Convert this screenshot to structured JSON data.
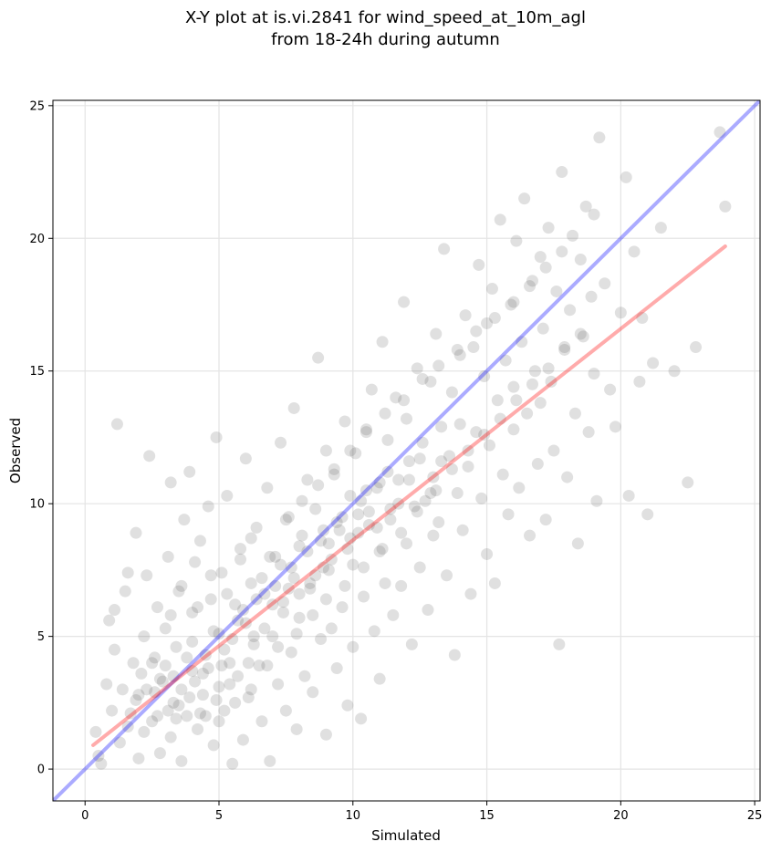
{
  "chart_data": {
    "type": "scatter",
    "title": "X-Y plot at is.vi.2841 for wind_speed_at_10m_agl",
    "subtitle": "from 18-24h during autumn",
    "xlabel": "Simulated",
    "ylabel": "Observed",
    "xlim": [
      -1.2,
      25.2
    ],
    "ylim": [
      -1.2,
      25.2
    ],
    "xticks": [
      0,
      5,
      10,
      15,
      20,
      25
    ],
    "yticks": [
      0,
      5,
      10,
      15,
      20,
      25
    ],
    "grid": true,
    "point_color": "#555555",
    "point_opacity": 0.18,
    "lines": [
      {
        "color": "#0000ff",
        "x": [
          -1.2,
          25.2
        ],
        "y": [
          -1.2,
          25.2
        ]
      },
      {
        "color": "#ff0000",
        "x": [
          0.3,
          23.9
        ],
        "y": [
          0.9,
          19.7
        ]
      }
    ],
    "points": [
      [
        0.4,
        1.4
      ],
      [
        0.5,
        0.5
      ],
      [
        0.6,
        0.2
      ],
      [
        0.8,
        3.2
      ],
      [
        0.9,
        5.6
      ],
      [
        1.0,
        2.2
      ],
      [
        1.1,
        4.5
      ],
      [
        1.1,
        6.0
      ],
      [
        1.2,
        13.0
      ],
      [
        1.3,
        1.0
      ],
      [
        1.4,
        3.0
      ],
      [
        1.5,
        6.7
      ],
      [
        1.6,
        7.4
      ],
      [
        1.7,
        2.1
      ],
      [
        1.8,
        4.0
      ],
      [
        1.9,
        8.9
      ],
      [
        2.0,
        0.4
      ],
      [
        2.1,
        3.6
      ],
      [
        2.2,
        5.0
      ],
      [
        2.3,
        7.3
      ],
      [
        2.4,
        11.8
      ],
      [
        2.5,
        1.8
      ],
      [
        2.6,
        2.9
      ],
      [
        2.6,
        4.2
      ],
      [
        2.7,
        6.1
      ],
      [
        2.8,
        0.6
      ],
      [
        2.9,
        3.3
      ],
      [
        3.0,
        5.3
      ],
      [
        3.1,
        8.0
      ],
      [
        3.2,
        1.2
      ],
      [
        3.2,
        10.8
      ],
      [
        3.3,
        2.5
      ],
      [
        3.4,
        4.6
      ],
      [
        3.5,
        6.7
      ],
      [
        3.6,
        0.3
      ],
      [
        3.7,
        9.4
      ],
      [
        3.8,
        2.0
      ],
      [
        3.9,
        11.2
      ],
      [
        4.0,
        3.7
      ],
      [
        4.0,
        5.9
      ],
      [
        4.1,
        7.8
      ],
      [
        4.2,
        1.5
      ],
      [
        4.3,
        8.6
      ],
      [
        4.4,
        2.8
      ],
      [
        4.5,
        4.3
      ],
      [
        4.6,
        9.9
      ],
      [
        4.7,
        6.4
      ],
      [
        4.8,
        0.9
      ],
      [
        4.9,
        12.5
      ],
      [
        5.0,
        3.1
      ],
      [
        5.0,
        5.1
      ],
      [
        5.1,
        7.4
      ],
      [
        5.2,
        2.2
      ],
      [
        5.3,
        10.3
      ],
      [
        5.4,
        4.0
      ],
      [
        5.5,
        0.2
      ],
      [
        5.6,
        6.2
      ],
      [
        5.7,
        3.5
      ],
      [
        5.8,
        8.3
      ],
      [
        5.9,
        1.1
      ],
      [
        6.0,
        11.7
      ],
      [
        6.0,
        5.5
      ],
      [
        6.1,
        2.7
      ],
      [
        6.2,
        7.0
      ],
      [
        6.3,
        4.7
      ],
      [
        6.4,
        9.1
      ],
      [
        6.5,
        3.9
      ],
      [
        6.6,
        1.8
      ],
      [
        6.7,
        6.6
      ],
      [
        6.8,
        10.6
      ],
      [
        6.9,
        0.3
      ],
      [
        7.0,
        5.0
      ],
      [
        7.1,
        8.0
      ],
      [
        7.2,
        3.2
      ],
      [
        7.3,
        12.3
      ],
      [
        7.4,
        6.3
      ],
      [
        7.5,
        2.2
      ],
      [
        7.6,
        9.5
      ],
      [
        7.7,
        4.4
      ],
      [
        7.8,
        7.2
      ],
      [
        7.8,
        13.6
      ],
      [
        7.9,
        1.5
      ],
      [
        8.0,
        5.7
      ],
      [
        8.1,
        8.8
      ],
      [
        8.2,
        3.5
      ],
      [
        8.3,
        10.9
      ],
      [
        8.4,
        6.8
      ],
      [
        8.5,
        2.9
      ],
      [
        8.6,
        9.8
      ],
      [
        8.7,
        15.5
      ],
      [
        8.8,
        4.9
      ],
      [
        8.9,
        7.6
      ],
      [
        9.0,
        12.0
      ],
      [
        9.0,
        1.3
      ],
      [
        9.1,
        8.5
      ],
      [
        9.2,
        5.3
      ],
      [
        9.3,
        11.1
      ],
      [
        9.4,
        3.8
      ],
      [
        9.5,
        9.0
      ],
      [
        9.6,
        6.1
      ],
      [
        9.7,
        13.1
      ],
      [
        9.8,
        2.4
      ],
      [
        9.9,
        10.3
      ],
      [
        10.0,
        7.7
      ],
      [
        10.0,
        4.6
      ],
      [
        10.1,
        11.9
      ],
      [
        10.2,
        8.9
      ],
      [
        10.3,
        1.9
      ],
      [
        10.4,
        6.5
      ],
      [
        10.5,
        12.8
      ],
      [
        10.6,
        9.7
      ],
      [
        10.7,
        14.3
      ],
      [
        10.8,
        5.2
      ],
      [
        10.9,
        10.6
      ],
      [
        11.0,
        8.2
      ],
      [
        11.0,
        3.4
      ],
      [
        11.1,
        16.1
      ],
      [
        11.2,
        7.0
      ],
      [
        11.3,
        12.4
      ],
      [
        11.4,
        9.4
      ],
      [
        11.5,
        5.8
      ],
      [
        11.6,
        14.0
      ],
      [
        11.7,
        10.9
      ],
      [
        11.8,
        6.9
      ],
      [
        11.9,
        17.6
      ],
      [
        12.0,
        8.5
      ],
      [
        12.0,
        13.2
      ],
      [
        12.1,
        11.6
      ],
      [
        12.2,
        4.7
      ],
      [
        12.3,
        9.9
      ],
      [
        12.4,
        15.1
      ],
      [
        12.5,
        7.6
      ],
      [
        12.6,
        12.3
      ],
      [
        12.7,
        10.1
      ],
      [
        12.8,
        6.0
      ],
      [
        12.9,
        14.6
      ],
      [
        13.0,
        11.0
      ],
      [
        13.0,
        8.8
      ],
      [
        13.1,
        16.4
      ],
      [
        13.2,
        9.3
      ],
      [
        13.3,
        12.9
      ],
      [
        13.4,
        19.6
      ],
      [
        13.5,
        7.3
      ],
      [
        13.6,
        11.8
      ],
      [
        13.7,
        14.2
      ],
      [
        13.8,
        4.3
      ],
      [
        13.9,
        10.4
      ],
      [
        14.0,
        15.6
      ],
      [
        14.0,
        13.0
      ],
      [
        14.1,
        9.0
      ],
      [
        14.2,
        17.1
      ],
      [
        14.3,
        11.4
      ],
      [
        14.4,
        6.6
      ],
      [
        14.5,
        15.9
      ],
      [
        14.6,
        12.7
      ],
      [
        14.7,
        19.0
      ],
      [
        14.8,
        10.2
      ],
      [
        14.9,
        14.8
      ],
      [
        15.0,
        8.1
      ],
      [
        15.0,
        16.8
      ],
      [
        15.1,
        12.2
      ],
      [
        15.2,
        18.1
      ],
      [
        15.3,
        7.0
      ],
      [
        15.4,
        13.9
      ],
      [
        15.5,
        20.7
      ],
      [
        15.6,
        11.1
      ],
      [
        15.7,
        15.4
      ],
      [
        15.8,
        9.6
      ],
      [
        15.9,
        17.5
      ],
      [
        16.0,
        12.8
      ],
      [
        16.0,
        14.4
      ],
      [
        16.1,
        19.9
      ],
      [
        16.2,
        10.6
      ],
      [
        16.3,
        16.1
      ],
      [
        16.4,
        21.5
      ],
      [
        16.5,
        13.4
      ],
      [
        16.6,
        8.8
      ],
      [
        16.7,
        18.4
      ],
      [
        16.8,
        15.0
      ],
      [
        16.9,
        11.5
      ],
      [
        17.0,
        19.3
      ],
      [
        17.0,
        13.8
      ],
      [
        17.1,
        16.6
      ],
      [
        17.2,
        9.4
      ],
      [
        17.3,
        20.4
      ],
      [
        17.4,
        14.6
      ],
      [
        17.5,
        12.0
      ],
      [
        17.6,
        18.0
      ],
      [
        17.7,
        4.7
      ],
      [
        17.8,
        22.5
      ],
      [
        17.9,
        15.9
      ],
      [
        18.0,
        11.0
      ],
      [
        18.1,
        17.3
      ],
      [
        18.2,
        20.1
      ],
      [
        18.3,
        13.4
      ],
      [
        18.4,
        8.5
      ],
      [
        18.5,
        19.2
      ],
      [
        18.6,
        16.3
      ],
      [
        18.7,
        21.2
      ],
      [
        18.8,
        12.7
      ],
      [
        18.9,
        17.8
      ],
      [
        19.0,
        14.9
      ],
      [
        19.0,
        20.9
      ],
      [
        19.1,
        10.1
      ],
      [
        19.2,
        23.8
      ],
      [
        19.4,
        18.3
      ],
      [
        19.6,
        14.3
      ],
      [
        19.8,
        12.9
      ],
      [
        20.0,
        17.2
      ],
      [
        20.2,
        22.3
      ],
      [
        20.3,
        10.3
      ],
      [
        20.5,
        19.5
      ],
      [
        20.7,
        14.6
      ],
      [
        20.8,
        17.0
      ],
      [
        21.0,
        9.6
      ],
      [
        21.2,
        15.3
      ],
      [
        21.5,
        20.4
      ],
      [
        22.0,
        15.0
      ],
      [
        22.5,
        10.8
      ],
      [
        22.8,
        15.9
      ],
      [
        23.7,
        24.0
      ],
      [
        23.9,
        21.2
      ],
      [
        2.3,
        3.0
      ],
      [
        2.7,
        2.0
      ],
      [
        3.0,
        3.9
      ],
      [
        3.3,
        3.5
      ],
      [
        3.5,
        2.4
      ],
      [
        3.8,
        4.2
      ],
      [
        4.1,
        3.3
      ],
      [
        4.3,
        2.1
      ],
      [
        4.6,
        3.8
      ],
      [
        4.9,
        2.6
      ],
      [
        5.2,
        4.5
      ],
      [
        5.4,
        3.2
      ],
      [
        5.7,
        5.6
      ],
      [
        6.1,
        4.0
      ],
      [
        6.4,
        6.4
      ],
      [
        6.7,
        5.3
      ],
      [
        7.1,
        6.9
      ],
      [
        7.4,
        5.9
      ],
      [
        7.7,
        7.6
      ],
      [
        8.0,
        6.6
      ],
      [
        8.3,
        8.2
      ],
      [
        8.6,
        7.3
      ],
      [
        8.9,
        9.0
      ],
      [
        9.2,
        7.9
      ],
      [
        9.6,
        9.5
      ],
      [
        9.9,
        8.7
      ],
      [
        10.3,
        10.1
      ],
      [
        10.6,
        9.2
      ],
      [
        11.0,
        10.8
      ],
      [
        11.4,
        9.8
      ],
      [
        2.0,
        2.8
      ],
      [
        2.5,
        4.0
      ],
      [
        3.1,
        2.2
      ],
      [
        3.6,
        3.0
      ],
      [
        4.0,
        4.8
      ],
      [
        4.4,
        3.6
      ],
      [
        4.8,
        5.2
      ],
      [
        5.1,
        3.9
      ],
      [
        5.5,
        4.9
      ],
      [
        5.9,
        6.0
      ],
      [
        6.3,
        5.0
      ],
      [
        6.6,
        7.2
      ],
      [
        7.0,
        6.2
      ],
      [
        7.3,
        7.7
      ],
      [
        7.6,
        6.8
      ],
      [
        8.0,
        8.4
      ],
      [
        8.4,
        7.0
      ],
      [
        8.8,
        8.6
      ],
      [
        9.1,
        7.5
      ],
      [
        9.4,
        9.3
      ],
      [
        9.8,
        8.3
      ],
      [
        10.2,
        9.6
      ],
      [
        10.5,
        10.5
      ],
      [
        10.9,
        9.1
      ],
      [
        11.3,
        11.2
      ],
      [
        11.7,
        10.0
      ],
      [
        12.1,
        10.9
      ],
      [
        12.5,
        11.7
      ],
      [
        12.9,
        10.4
      ],
      [
        13.3,
        11.6
      ],
      [
        1.6,
        1.6
      ],
      [
        1.9,
        2.6
      ],
      [
        2.2,
        1.4
      ],
      [
        2.8,
        3.4
      ],
      [
        3.4,
        1.9
      ],
      [
        3.9,
        2.7
      ],
      [
        4.5,
        2.0
      ],
      [
        5.0,
        1.8
      ],
      [
        5.6,
        2.5
      ],
      [
        6.2,
        3.0
      ],
      [
        6.8,
        3.9
      ],
      [
        7.2,
        4.6
      ],
      [
        7.9,
        5.1
      ],
      [
        8.5,
        5.8
      ],
      [
        9.0,
        6.4
      ],
      [
        9.7,
        6.9
      ],
      [
        10.4,
        7.6
      ],
      [
        11.1,
        8.3
      ],
      [
        11.8,
        8.9
      ],
      [
        12.4,
        9.7
      ],
      [
        13.1,
        10.5
      ],
      [
        13.7,
        11.3
      ],
      [
        14.3,
        12.0
      ],
      [
        14.9,
        12.6
      ],
      [
        15.5,
        13.2
      ],
      [
        16.1,
        13.9
      ],
      [
        16.7,
        14.5
      ],
      [
        17.3,
        15.1
      ],
      [
        17.9,
        15.8
      ],
      [
        18.5,
        16.4
      ],
      [
        3.2,
        5.8
      ],
      [
        3.6,
        6.9
      ],
      [
        4.2,
        6.1
      ],
      [
        4.7,
        7.3
      ],
      [
        5.3,
        6.6
      ],
      [
        5.8,
        7.9
      ],
      [
        6.2,
        8.7
      ],
      [
        6.9,
        8.0
      ],
      [
        7.5,
        9.4
      ],
      [
        8.1,
        10.1
      ],
      [
        8.7,
        10.7
      ],
      [
        9.3,
        11.3
      ],
      [
        9.9,
        12.0
      ],
      [
        10.5,
        12.7
      ],
      [
        11.2,
        13.4
      ],
      [
        11.9,
        13.9
      ],
      [
        12.6,
        14.7
      ],
      [
        13.2,
        15.2
      ],
      [
        13.9,
        15.8
      ],
      [
        14.6,
        16.5
      ],
      [
        15.3,
        17.0
      ],
      [
        16.0,
        17.6
      ],
      [
        16.6,
        18.2
      ],
      [
        17.2,
        18.9
      ],
      [
        17.8,
        19.5
      ]
    ]
  }
}
